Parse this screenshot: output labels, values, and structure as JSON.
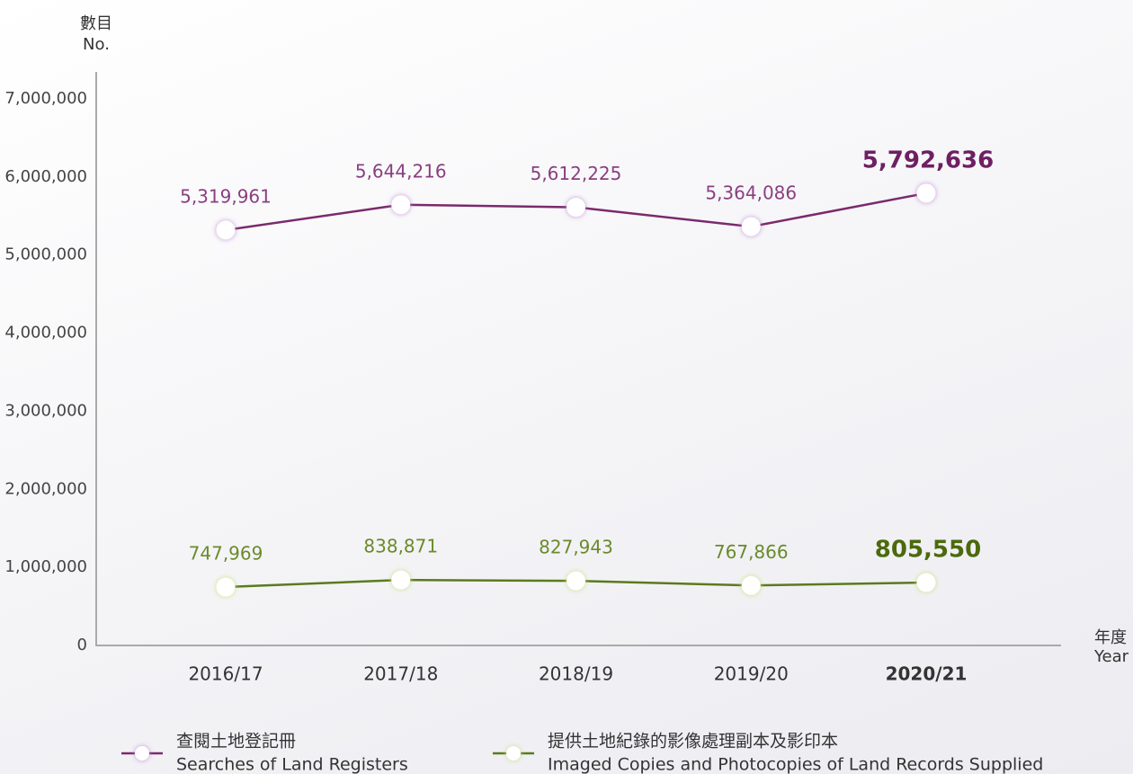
{
  "chart_data": {
    "type": "line",
    "y_axis_label": "數目",
    "y_axis_label_en": "No.",
    "x_axis_label": "年度",
    "x_axis_label_en": "Year",
    "categories": [
      "2016/17",
      "2017/18",
      "2018/19",
      "2019/20",
      "2020/21"
    ],
    "ylim": [
      0,
      7000000
    ],
    "yticks": [
      0,
      {
        "value": 1000000,
        "label": "1,000,000"
      },
      {
        "value": 2000000,
        "label": "2,000,000"
      },
      {
        "value": 3000000,
        "label": "3,000,000"
      },
      {
        "value": 4000000,
        "label": "4,000,000"
      },
      {
        "value": 5000000,
        "label": "5,000,000"
      },
      {
        "value": 6000000,
        "label": "6,000,000"
      },
      {
        "value": 7000000,
        "label": "7,000,000"
      }
    ],
    "series": [
      {
        "name": "查閱土地登記冊",
        "name_en": "Searches of Land Registers",
        "color": "#7a2a6c",
        "values": [
          5319961,
          5644216,
          5612225,
          5364086,
          5792636
        ],
        "value_labels": [
          "5,319,961",
          "5,644,216",
          "5,612,225",
          "5,364,086",
          "5,792,636"
        ]
      },
      {
        "name": "提供土地紀錄的影像處理副本及影印本",
        "name_en": "Imaged Copies and Photocopies of Land Records Supplied",
        "color": "#5b7a1c",
        "values": [
          747969,
          838871,
          827943,
          767866,
          805550
        ],
        "value_labels": [
          "747,969",
          "838,871",
          "827,943",
          "767,866",
          "805,550"
        ]
      }
    ]
  }
}
